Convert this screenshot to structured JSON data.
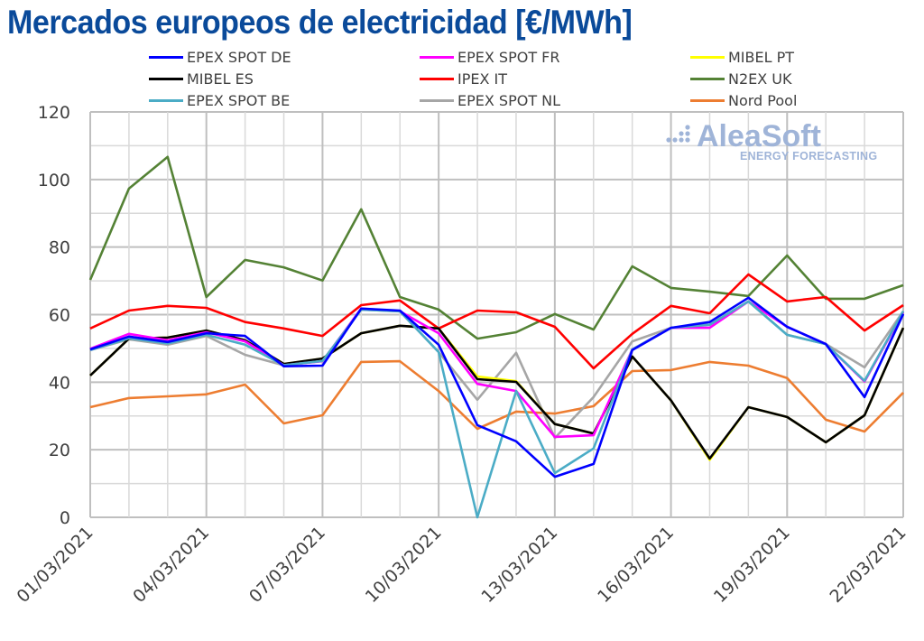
{
  "header": {
    "title": "Mercados europeos de electricidad [€/MWh]"
  },
  "watermark": {
    "brand": "AleaSoft",
    "tagline": "ENERGY FORECASTING",
    "icon": "dots-logo-icon",
    "color": "#9fb4d8"
  },
  "chart_data": {
    "type": "line",
    "title": "Mercados europeos de electricidad [€/MWh]",
    "xlabel": "",
    "ylabel": "",
    "ylim": [
      0,
      120
    ],
    "yticks": [
      0,
      20,
      40,
      60,
      80,
      100,
      120
    ],
    "grid": true,
    "legend_position": "top",
    "x": [
      "01/03/2021",
      "02/03/2021",
      "03/03/2021",
      "04/03/2021",
      "05/03/2021",
      "06/03/2021",
      "07/03/2021",
      "08/03/2021",
      "09/03/2021",
      "10/03/2021",
      "11/03/2021",
      "12/03/2021",
      "13/03/2021",
      "14/03/2021",
      "15/03/2021",
      "16/03/2021",
      "17/03/2021",
      "18/03/2021",
      "19/03/2021",
      "20/03/2021",
      "21/03/2021",
      "22/03/2021"
    ],
    "xtick_labels": [
      "01/03/2021",
      "04/03/2021",
      "07/03/2021",
      "10/03/2021",
      "13/03/2021",
      "16/03/2021",
      "19/03/2021",
      "22/03/2021"
    ],
    "series": [
      {
        "name": "EPEX SPOT DE",
        "color": "#0000ff",
        "values": [
          49.7,
          53.5,
          51.9,
          54.5,
          53.7,
          44.7,
          44.9,
          61.8,
          61.2,
          51.1,
          27.3,
          22.5,
          12.0,
          15.8,
          49.5,
          56.1,
          57.8,
          65.0,
          56.4,
          51.3,
          35.6,
          60.2
        ]
      },
      {
        "name": "EPEX SPOT FR",
        "color": "#ff00ff",
        "values": [
          49.9,
          54.3,
          52.4,
          54.8,
          52.1,
          45.0,
          46.2,
          61.8,
          61.0,
          54.5,
          39.5,
          37.4,
          23.8,
          24.3,
          49.7,
          56.1,
          56.1,
          63.9,
          56.4,
          51.3,
          40.2,
          60.7
        ]
      },
      {
        "name": "MIBEL PT",
        "color": "#ffff00",
        "values": [
          42.0,
          52.9,
          53.2,
          55.3,
          52.4,
          45.4,
          47.0,
          54.5,
          56.7,
          55.9,
          41.7,
          40.3,
          27.6,
          24.8,
          47.6,
          34.6,
          17.0,
          32.6,
          29.7,
          22.2,
          30.2,
          56.1
        ]
      },
      {
        "name": "MIBEL ES",
        "color": "#000000",
        "values": [
          42.0,
          52.9,
          53.2,
          55.3,
          52.4,
          45.4,
          47.0,
          54.5,
          56.7,
          55.9,
          40.9,
          40.1,
          27.6,
          24.8,
          47.6,
          34.6,
          17.4,
          32.6,
          29.7,
          22.2,
          30.2,
          56.1
        ]
      },
      {
        "name": "IPEX IT",
        "color": "#ff0000",
        "values": [
          55.9,
          61.2,
          62.6,
          62.0,
          57.8,
          55.9,
          53.7,
          62.8,
          64.2,
          55.9,
          61.2,
          60.7,
          56.4,
          44.1,
          54.3,
          62.6,
          60.4,
          71.9,
          63.9,
          65.2,
          55.3,
          62.8
        ]
      },
      {
        "name": "N2EX UK",
        "color": "#548235",
        "values": [
          70.3,
          97.3,
          106.7,
          65.2,
          76.2,
          74.0,
          70.1,
          91.2,
          65.2,
          61.5,
          52.9,
          54.8,
          60.2,
          55.6,
          74.3,
          67.9,
          66.8,
          65.5,
          77.5,
          64.7,
          64.7,
          68.7
        ]
      },
      {
        "name": "EPEX SPOT BE",
        "color": "#4bacc6",
        "values": [
          49.5,
          53.0,
          51.5,
          54.0,
          51.1,
          45.0,
          46.3,
          61.5,
          61.0,
          48.9,
          0.0,
          37.4,
          13.1,
          20.4,
          49.7,
          56.1,
          57.0,
          63.9,
          54.0,
          51.3,
          40.4,
          61.0
        ]
      },
      {
        "name": "EPEX SPOT NL",
        "color": "#a6a6a6",
        "values": [
          49.5,
          52.7,
          51.1,
          53.7,
          48.1,
          45.0,
          46.3,
          61.5,
          61.0,
          48.9,
          34.8,
          48.7,
          23.5,
          35.6,
          52.1,
          56.1,
          57.0,
          63.9,
          54.0,
          51.3,
          44.4,
          61.0
        ]
      },
      {
        "name": "Nord Pool",
        "color": "#ed7d31",
        "values": [
          32.6,
          35.3,
          35.8,
          36.4,
          39.3,
          27.8,
          30.2,
          46.0,
          46.2,
          37.4,
          26.2,
          31.3,
          30.7,
          32.9,
          43.3,
          43.6,
          46.0,
          44.9,
          41.2,
          28.9,
          25.4,
          36.9
        ]
      }
    ],
    "legend": {
      "columns": 3,
      "order": [
        "EPEX SPOT DE",
        "EPEX SPOT FR",
        "MIBEL PT",
        "MIBEL ES",
        "IPEX IT",
        "N2EX UK",
        "EPEX SPOT BE",
        "EPEX SPOT NL",
        "Nord Pool"
      ]
    }
  }
}
